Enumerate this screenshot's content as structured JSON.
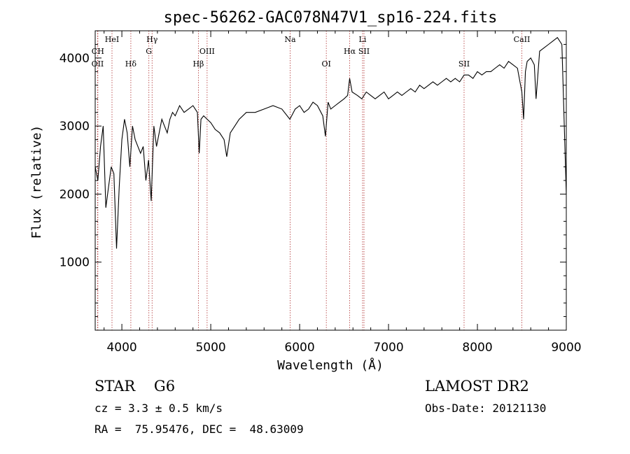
{
  "chart_data": {
    "type": "line",
    "title": "spec-56262-GAC078N47V1_sp16-224.fits",
    "xlabel": "Wavelength (Å)",
    "ylabel": "Flux (relative)",
    "xlim": [
      3700,
      9000
    ],
    "ylim": [
      0,
      4400
    ],
    "xticks": [
      4000,
      5000,
      6000,
      7000,
      8000,
      9000
    ],
    "yticks": [
      1000,
      2000,
      3000,
      4000
    ],
    "series": [
      {
        "x": [
          3700,
          3730,
          3760,
          3790,
          3820,
          3850,
          3880,
          3910,
          3940,
          3970,
          4000,
          4030,
          4060,
          4090,
          4120,
          4150,
          4180,
          4210,
          4240,
          4270,
          4300,
          4330,
          4360,
          4390,
          4420,
          4450,
          4480,
          4510,
          4540,
          4570,
          4600,
          4650,
          4700,
          4750,
          4800,
          4850,
          4870,
          4890,
          4920,
          4960,
          5000,
          5050,
          5100,
          5150,
          5180,
          5220,
          5270,
          5320,
          5400,
          5500,
          5600,
          5700,
          5800,
          5890,
          5950,
          6000,
          6050,
          6100,
          6150,
          6200,
          6260,
          6290,
          6320,
          6350,
          6400,
          6450,
          6500,
          6540,
          6563,
          6590,
          6650,
          6700,
          6750,
          6800,
          6850,
          6900,
          6950,
          7000,
          7050,
          7100,
          7150,
          7200,
          7250,
          7300,
          7350,
          7400,
          7450,
          7500,
          7550,
          7600,
          7650,
          7700,
          7750,
          7800,
          7850,
          7900,
          7950,
          8000,
          8050,
          8100,
          8150,
          8200,
          8250,
          8300,
          8350,
          8400,
          8450,
          8500,
          8520,
          8540,
          8560,
          8600,
          8640,
          8660,
          8700,
          8750,
          8800,
          8850,
          8900,
          8950,
          9000
        ],
        "y": [
          2400,
          2200,
          2700,
          3000,
          1800,
          2100,
          2400,
          2300,
          1200,
          2100,
          2800,
          3100,
          2900,
          2400,
          3000,
          2800,
          2700,
          2600,
          2700,
          2200,
          2500,
          1900,
          3000,
          2700,
          2900,
          3100,
          3000,
          2900,
          3100,
          3200,
          3150,
          3300,
          3200,
          3250,
          3300,
          3200,
          2600,
          3100,
          3150,
          3100,
          3050,
          2950,
          2900,
          2800,
          2550,
          2900,
          3000,
          3100,
          3200,
          3200,
          3250,
          3300,
          3250,
          3100,
          3250,
          3300,
          3200,
          3250,
          3350,
          3300,
          3150,
          2850,
          3350,
          3250,
          3300,
          3350,
          3400,
          3450,
          3700,
          3500,
          3450,
          3400,
          3500,
          3450,
          3400,
          3450,
          3500,
          3400,
          3450,
          3500,
          3450,
          3500,
          3550,
          3500,
          3600,
          3550,
          3600,
          3650,
          3600,
          3650,
          3700,
          3650,
          3700,
          3650,
          3750,
          3750,
          3700,
          3800,
          3750,
          3800,
          3800,
          3850,
          3900,
          3850,
          3950,
          3900,
          3850,
          3500,
          3100,
          3800,
          3950,
          4000,
          3900,
          3400,
          4100,
          4150,
          4200,
          4250,
          4300,
          4200,
          2000
        ]
      }
    ],
    "line_markers": [
      {
        "label": "OII",
        "x": 3727,
        "row": 2
      },
      {
        "label": "CH",
        "x": 3730,
        "row": 1
      },
      {
        "label": "HeI",
        "x": 3889,
        "row": 0
      },
      {
        "label": "Hδ",
        "x": 4101,
        "row": 2
      },
      {
        "label": "G",
        "x": 4304,
        "row": 1
      },
      {
        "label": "Hγ",
        "x": 4340,
        "row": 0
      },
      {
        "label": "Hβ",
        "x": 4861,
        "row": 2
      },
      {
        "label": "OIII",
        "x": 4959,
        "row": 1
      },
      {
        "label": "Na",
        "x": 5893,
        "row": 0
      },
      {
        "label": "OI",
        "x": 6300,
        "row": 2
      },
      {
        "label": "Hα",
        "x": 6563,
        "row": 1
      },
      {
        "label": "Li",
        "x": 6708,
        "row": 0
      },
      {
        "label": "SII",
        "x": 6724,
        "row": 1
      },
      {
        "label": "SII",
        "x": 7850,
        "row": 2
      },
      {
        "label": "CaII",
        "x": 8500,
        "row": 0
      }
    ]
  },
  "info": {
    "object": "STAR    G6",
    "cz": "cz = 3.3 ± 0.5 km/s",
    "coords": "RA =  75.95476, DEC =  48.63009",
    "survey": "LAMOST DR2",
    "obs_date": "Obs-Date: 20121130"
  },
  "colors": {
    "marker": "#b03030",
    "axis": "#000000",
    "spectrum": "#000000"
  }
}
